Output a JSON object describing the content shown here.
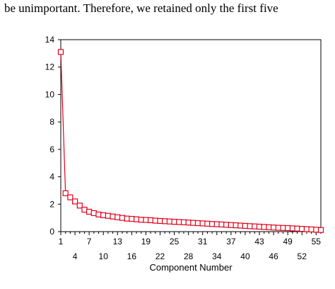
{
  "context": {
    "text": "be unimportant. Therefore, we retained only the first five"
  },
  "chart_data": {
    "type": "line",
    "title": "",
    "xlabel": "Component Number",
    "ylabel": "",
    "xlim": [
      1,
      56
    ],
    "ylim": [
      0,
      14
    ],
    "y_ticks": [
      0,
      2,
      4,
      6,
      8,
      10,
      12,
      14
    ],
    "x_tick_labels_row1": [
      1,
      7,
      13,
      19,
      25,
      31,
      37,
      43,
      49,
      55
    ],
    "x_tick_labels_row2": [
      4,
      10,
      16,
      22,
      28,
      34,
      40,
      46,
      52
    ],
    "marker": "hollow-square",
    "line_color": "#e3001b",
    "grid": false,
    "series": [
      {
        "x": [
          1,
          2,
          3,
          4,
          5,
          6,
          7,
          8,
          9,
          10,
          11,
          12,
          13,
          14,
          15,
          16,
          17,
          18,
          19,
          20,
          21,
          22,
          23,
          24,
          25,
          26,
          27,
          28,
          29,
          30,
          31,
          32,
          33,
          34,
          35,
          36,
          37,
          38,
          39,
          40,
          41,
          42,
          43,
          44,
          45,
          46,
          47,
          48,
          49,
          50,
          51,
          52,
          53,
          54,
          55,
          56
        ],
        "values": [
          13.1,
          2.8,
          2.5,
          2.2,
          1.9,
          1.6,
          1.45,
          1.35,
          1.25,
          1.2,
          1.15,
          1.1,
          1.05,
          1.0,
          0.95,
          0.93,
          0.9,
          0.87,
          0.85,
          0.83,
          0.8,
          0.78,
          0.76,
          0.74,
          0.72,
          0.7,
          0.68,
          0.66,
          0.64,
          0.62,
          0.6,
          0.58,
          0.56,
          0.54,
          0.52,
          0.5,
          0.48,
          0.46,
          0.44,
          0.42,
          0.4,
          0.38,
          0.36,
          0.34,
          0.32,
          0.3,
          0.28,
          0.27,
          0.26,
          0.24,
          0.22,
          0.2,
          0.18,
          0.16,
          0.14,
          0.12
        ]
      }
    ]
  }
}
